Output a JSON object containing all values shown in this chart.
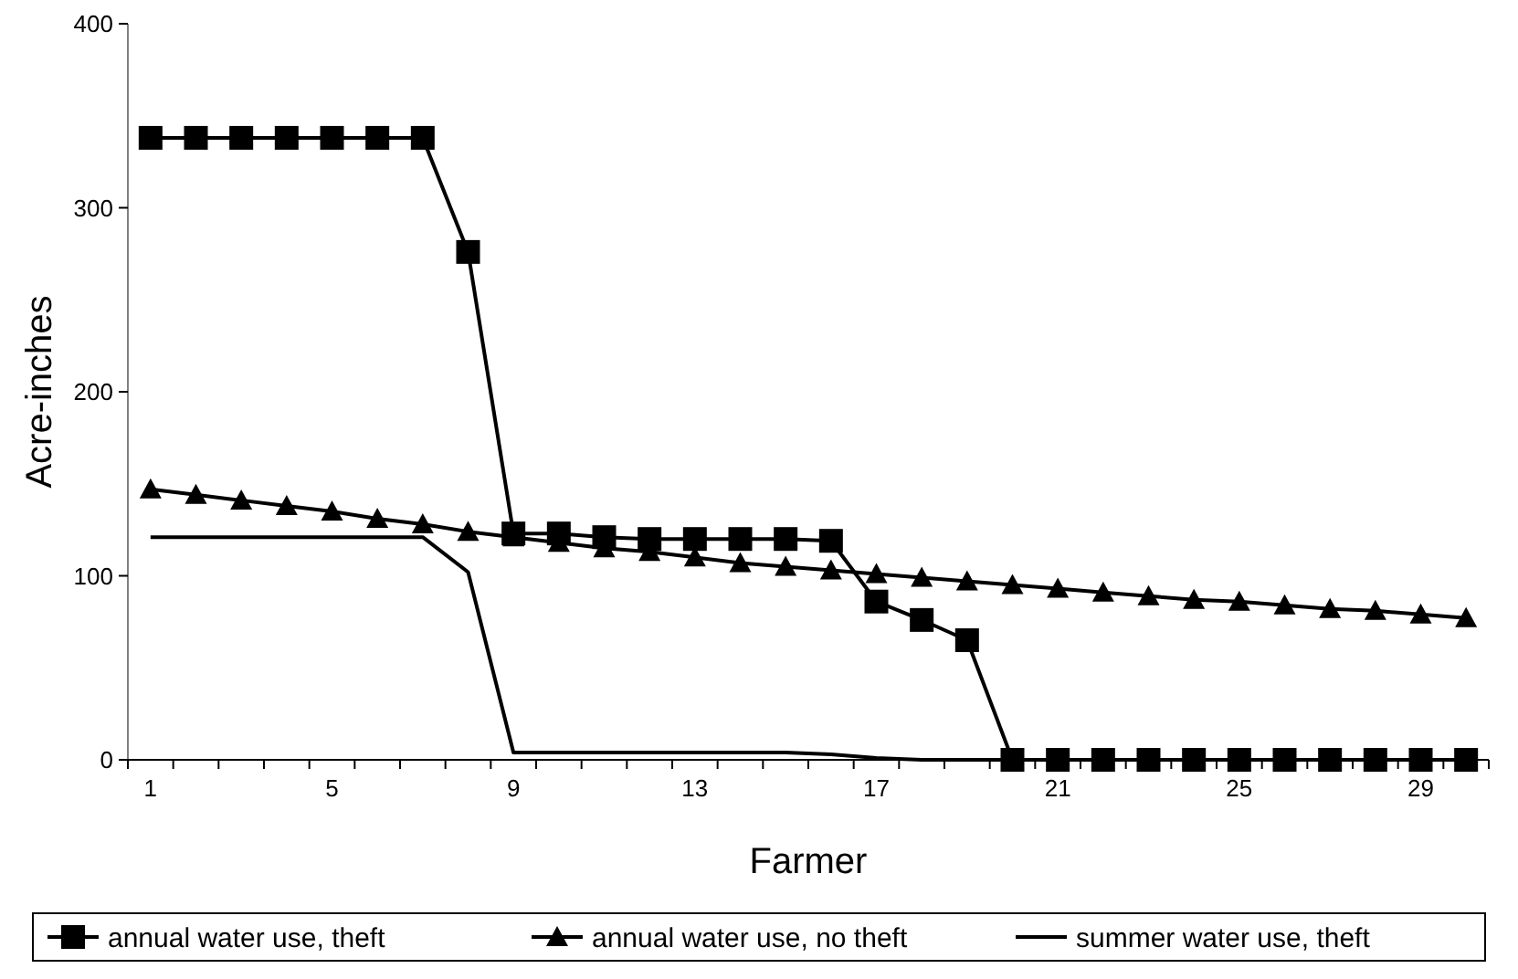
{
  "chart_data": {
    "type": "line",
    "xlabel": "Farmer",
    "ylabel": "Acre-inches",
    "categories": [
      "1",
      null,
      null,
      null,
      "5",
      null,
      null,
      null,
      "9",
      null,
      null,
      null,
      "13",
      null,
      null,
      null,
      "17",
      null,
      null,
      null,
      "21",
      null,
      null,
      null,
      "25",
      null,
      null,
      null,
      "29",
      null
    ],
    "series": [
      {
        "name": "annual water use, theft",
        "color": "#000000",
        "marker": "square",
        "values": [
          338,
          338,
          338,
          338,
          338,
          338,
          338,
          276,
          123,
          123,
          121,
          120,
          120,
          120,
          120,
          119,
          86,
          76,
          65,
          0,
          0,
          0,
          0,
          0,
          0,
          0,
          0,
          0,
          0,
          0
        ]
      },
      {
        "name": "annual water use, no theft",
        "color": "#000000",
        "marker": "triangle",
        "values": [
          147,
          144,
          141,
          138,
          135,
          131,
          128,
          124,
          121,
          118,
          115,
          113,
          110,
          107,
          105,
          103,
          101,
          99,
          97,
          95,
          93,
          91,
          89,
          87,
          86,
          84,
          82,
          81,
          79,
          77
        ]
      },
      {
        "name": "summer water use, theft",
        "color": "#000000",
        "marker": "none",
        "values": [
          121,
          121,
          121,
          121,
          121,
          121,
          121,
          102,
          4,
          4,
          4,
          4,
          4,
          4,
          4,
          3,
          1,
          0,
          0,
          0,
          0,
          0,
          0,
          0,
          0,
          0,
          0,
          0,
          0,
          0
        ]
      }
    ],
    "ylim": [
      0,
      400
    ],
    "yticks": [
      0,
      100,
      200,
      300,
      400
    ],
    "grid": false,
    "legend": "bottom",
    "line_style": "solid"
  }
}
